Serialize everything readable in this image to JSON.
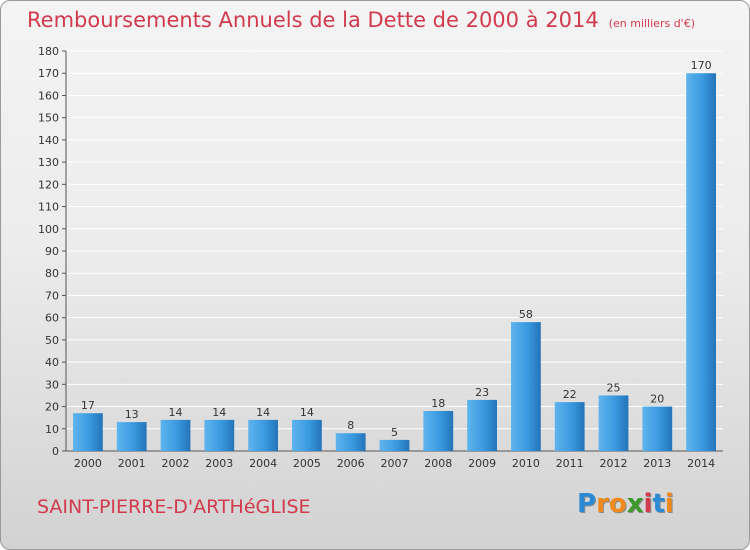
{
  "header": {
    "title": "Remboursements Annuels de la Dette de 2000 à 2014",
    "subtitle": "(en milliers d'€)"
  },
  "footer": {
    "commune": "SAINT-PIERRE-D'ARTHéGLISE",
    "logo_letters": [
      "P",
      "r",
      "o",
      "x",
      "i",
      "t",
      "i"
    ],
    "logo_colors": [
      "#2a8ad6",
      "#f08a1c",
      "#f08a1c",
      "#3c9a2c",
      "#d23a4e",
      "#2a8ad6",
      "#f08a1c"
    ]
  },
  "chart_data": {
    "type": "bar",
    "categories": [
      "2000",
      "2001",
      "2002",
      "2003",
      "2004",
      "2005",
      "2006",
      "2007",
      "2008",
      "2009",
      "2010",
      "2011",
      "2012",
      "2013",
      "2014"
    ],
    "values": [
      17,
      13,
      14,
      14,
      14,
      14,
      8,
      5,
      18,
      23,
      58,
      22,
      25,
      20,
      170
    ],
    "data_labels": [
      "17",
      "13",
      "14",
      "14",
      "14",
      "14",
      "8",
      "5",
      "18",
      "23",
      "58",
      "22",
      "25",
      "20",
      "170"
    ],
    "title": "Remboursements Annuels de la Dette de 2000 à 2014",
    "xlabel": "",
    "ylabel": "",
    "ylim": [
      0,
      180
    ],
    "yticks": [
      0,
      10,
      20,
      30,
      40,
      50,
      60,
      70,
      80,
      90,
      100,
      110,
      120,
      130,
      140,
      150,
      160,
      170,
      180
    ],
    "grid": true,
    "bar_color": "#3a9ae0",
    "grid_color": "#ffffff"
  }
}
